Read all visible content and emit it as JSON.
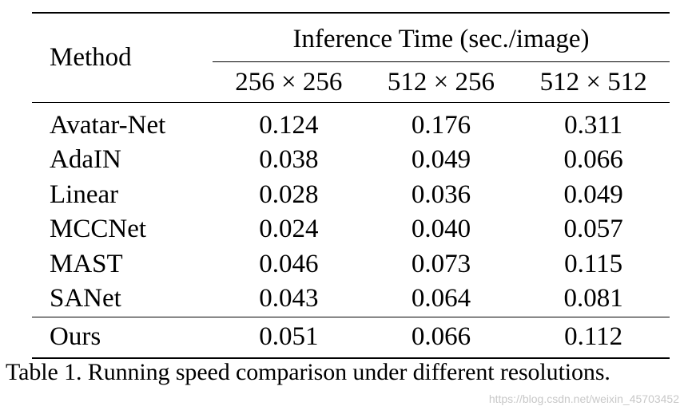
{
  "table": {
    "method_header": "Method",
    "group_header": "Inference Time (sec./image)",
    "resolutions": [
      "256 × 256",
      "512 × 256",
      "512 × 512"
    ],
    "rows": [
      {
        "method": "Avatar-Net",
        "values": [
          "0.124",
          "0.176",
          "0.311"
        ]
      },
      {
        "method": "AdaIN",
        "values": [
          "0.038",
          "0.049",
          "0.066"
        ]
      },
      {
        "method": "Linear",
        "values": [
          "0.028",
          "0.036",
          "0.049"
        ]
      },
      {
        "method": "MCCNet",
        "values": [
          "0.024",
          "0.040",
          "0.057"
        ]
      },
      {
        "method": "MAST",
        "values": [
          "0.046",
          "0.073",
          "0.115"
        ]
      },
      {
        "method": "SANet",
        "values": [
          "0.043",
          "0.064",
          "0.081"
        ]
      }
    ],
    "ours": {
      "method": "Ours",
      "values": [
        "0.051",
        "0.066",
        "0.112"
      ]
    }
  },
  "caption": "Table 1. Running speed comparison under different resolutions.",
  "watermark": "https://blog.csdn.net/weixin_45703452"
}
